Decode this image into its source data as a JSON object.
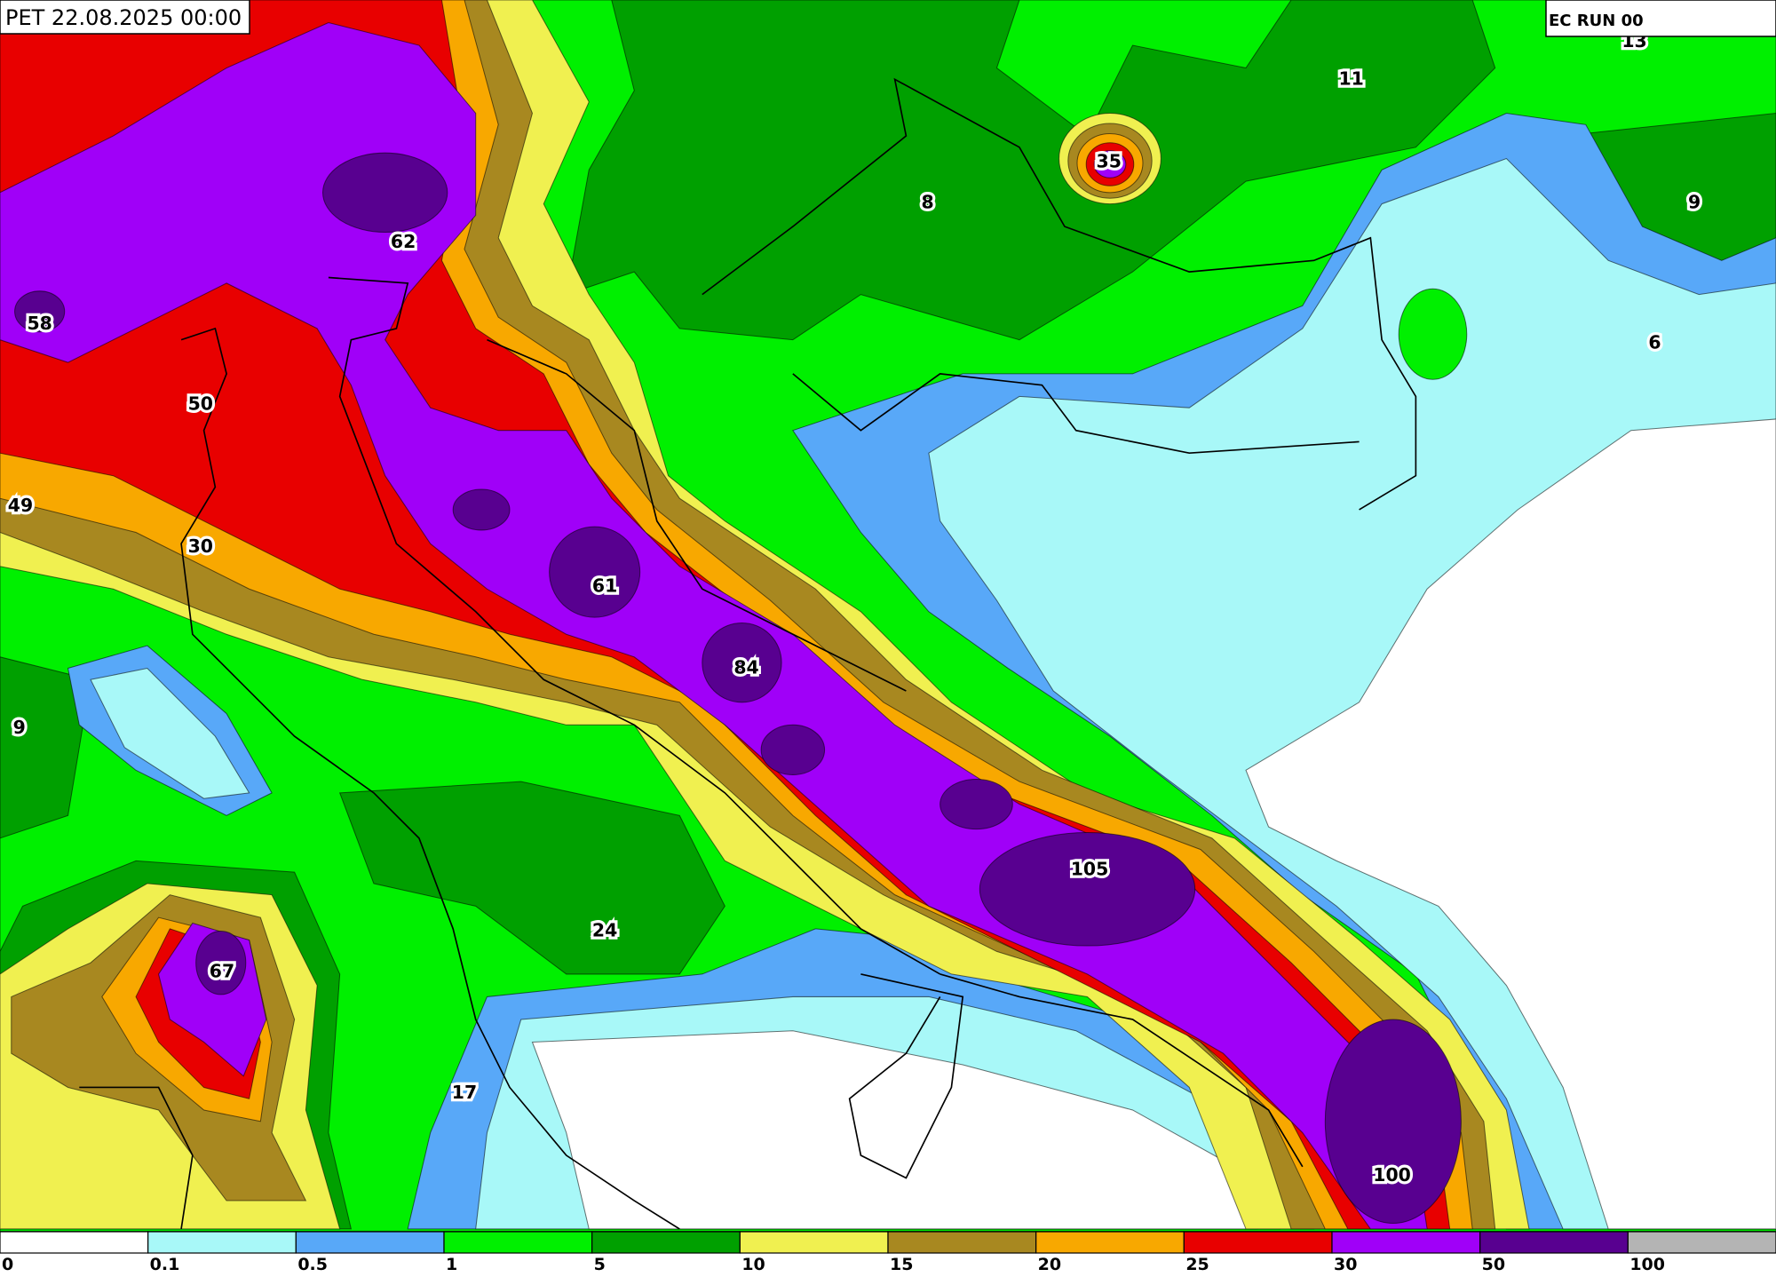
{
  "header": {
    "title": "PET 22.08.2025 00:00",
    "run": "EC RUN 00"
  },
  "labels": [
    62,
    58,
    50,
    49,
    30,
    61,
    84,
    9,
    105,
    24,
    67,
    17,
    100,
    35,
    8,
    11,
    13,
    9,
    6
  ],
  "legend": {
    "ticks": [
      0,
      0.1,
      0.5,
      1,
      5,
      10,
      15,
      20,
      25,
      30,
      50,
      100
    ],
    "colors": [
      "#ffffff",
      "#a8f8f8",
      "#58a8f8",
      "#00f000",
      "#00a000",
      "#f0f050",
      "#a88820",
      "#f8a800",
      "#e80000",
      "#a000f8",
      "#580090",
      "#b4b4b4"
    ]
  }
}
